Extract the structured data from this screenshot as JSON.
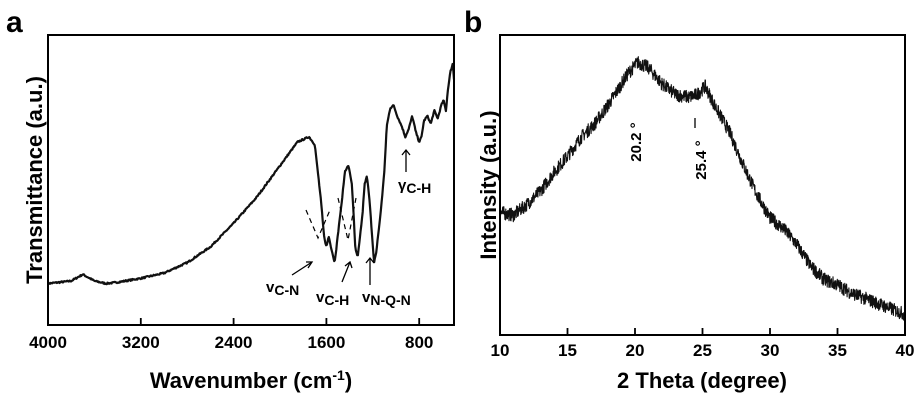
{
  "chart_data": [
    {
      "panel": "a",
      "type": "line",
      "xlabel": "Wavenumber (cm",
      "xlabel_sup": "-1",
      "xlabel_close": ")",
      "ylabel": "Transmittance (a.u.)",
      "xlim": [
        4000,
        500
      ],
      "x_reversed": true,
      "xticks": [
        4000,
        3200,
        2400,
        1600,
        800
      ],
      "y_ticks_shown": false,
      "series": [
        {
          "points": [
            [
              4000,
              0.12
            ],
            [
              3800,
              0.13
            ],
            [
              3700,
              0.155
            ],
            [
              3600,
              0.13
            ],
            [
              3500,
              0.12
            ],
            [
              3400,
              0.125
            ],
            [
              3200,
              0.14
            ],
            [
              3000,
              0.16
            ],
            [
              2800,
              0.2
            ],
            [
              2600,
              0.26
            ],
            [
              2400,
              0.35
            ],
            [
              2200,
              0.45
            ],
            [
              2000,
              0.57
            ],
            [
              1850,
              0.66
            ],
            [
              1750,
              0.68
            ],
            [
              1700,
              0.65
            ],
            [
              1650,
              0.45
            ],
            [
              1620,
              0.3
            ],
            [
              1600,
              0.26
            ],
            [
              1580,
              0.3
            ],
            [
              1560,
              0.26
            ],
            [
              1530,
              0.2
            ],
            [
              1510,
              0.27
            ],
            [
              1490,
              0.35
            ],
            [
              1470,
              0.42
            ],
            [
              1440,
              0.55
            ],
            [
              1410,
              0.57
            ],
            [
              1380,
              0.5
            ],
            [
              1350,
              0.25
            ],
            [
              1330,
              0.22
            ],
            [
              1310,
              0.3
            ],
            [
              1290,
              0.38
            ],
            [
              1270,
              0.5
            ],
            [
              1250,
              0.53
            ],
            [
              1230,
              0.45
            ],
            [
              1190,
              0.2
            ],
            [
              1170,
              0.24
            ],
            [
              1150,
              0.32
            ],
            [
              1130,
              0.4
            ],
            [
              1100,
              0.55
            ],
            [
              1080,
              0.72
            ],
            [
              1050,
              0.79
            ],
            [
              1020,
              0.8
            ],
            [
              990,
              0.76
            ],
            [
              950,
              0.72
            ],
            [
              920,
              0.68
            ],
            [
              890,
              0.71
            ],
            [
              860,
              0.76
            ],
            [
              830,
              0.7
            ],
            [
              800,
              0.66
            ],
            [
              780,
              0.68
            ],
            [
              760,
              0.74
            ],
            [
              730,
              0.76
            ],
            [
              700,
              0.73
            ],
            [
              670,
              0.78
            ],
            [
              640,
              0.75
            ],
            [
              610,
              0.8
            ],
            [
              590,
              0.82
            ],
            [
              570,
              0.78
            ],
            [
              550,
              0.87
            ],
            [
              530,
              0.93
            ],
            [
              510,
              0.96
            ],
            [
              500,
              0.9
            ]
          ]
        }
      ],
      "annotations": [
        {
          "text": "v",
          "sub": "C-N",
          "x": 1620
        },
        {
          "text": "v",
          "sub": "C-H",
          "x": 1460
        },
        {
          "text": "v",
          "sub": "N-Q-N",
          "x": 1180
        },
        {
          "text": "γ",
          "sub": "C-H",
          "x": 800
        }
      ]
    },
    {
      "panel": "b",
      "type": "line",
      "xlabel": "2 Theta (degree)",
      "ylabel": "Intensity (a.u.)",
      "xlim": [
        10,
        40
      ],
      "xticks": [
        10,
        15,
        20,
        25,
        30,
        35,
        40
      ],
      "y_ticks_shown": false,
      "series": [
        {
          "points": [
            [
              10,
              0.42
            ],
            [
              11,
              0.41
            ],
            [
              12,
              0.45
            ],
            [
              13,
              0.5
            ],
            [
              14,
              0.57
            ],
            [
              15,
              0.63
            ],
            [
              16,
              0.7
            ],
            [
              17,
              0.75
            ],
            [
              18,
              0.82
            ],
            [
              19,
              0.9
            ],
            [
              19.5,
              0.94
            ],
            [
              20.2,
              0.98
            ],
            [
              21,
              0.96
            ],
            [
              22,
              0.9
            ],
            [
              23,
              0.86
            ],
            [
              24,
              0.85
            ],
            [
              24.6,
              0.86
            ],
            [
              25.2,
              0.89
            ],
            [
              26,
              0.81
            ],
            [
              27,
              0.72
            ],
            [
              28,
              0.6
            ],
            [
              29,
              0.49
            ],
            [
              30,
              0.4
            ],
            [
              31,
              0.36
            ],
            [
              32,
              0.3
            ],
            [
              33,
              0.22
            ],
            [
              34,
              0.17
            ],
            [
              35,
              0.15
            ],
            [
              36,
              0.12
            ],
            [
              37,
              0.1
            ],
            [
              38,
              0.08
            ],
            [
              39,
              0.06
            ],
            [
              40,
              0.04
            ]
          ]
        }
      ],
      "annotations": [
        {
          "text": "20.2 °",
          "x": 20.2
        },
        {
          "text": "25.4 °",
          "x": 25.4
        }
      ]
    }
  ]
}
